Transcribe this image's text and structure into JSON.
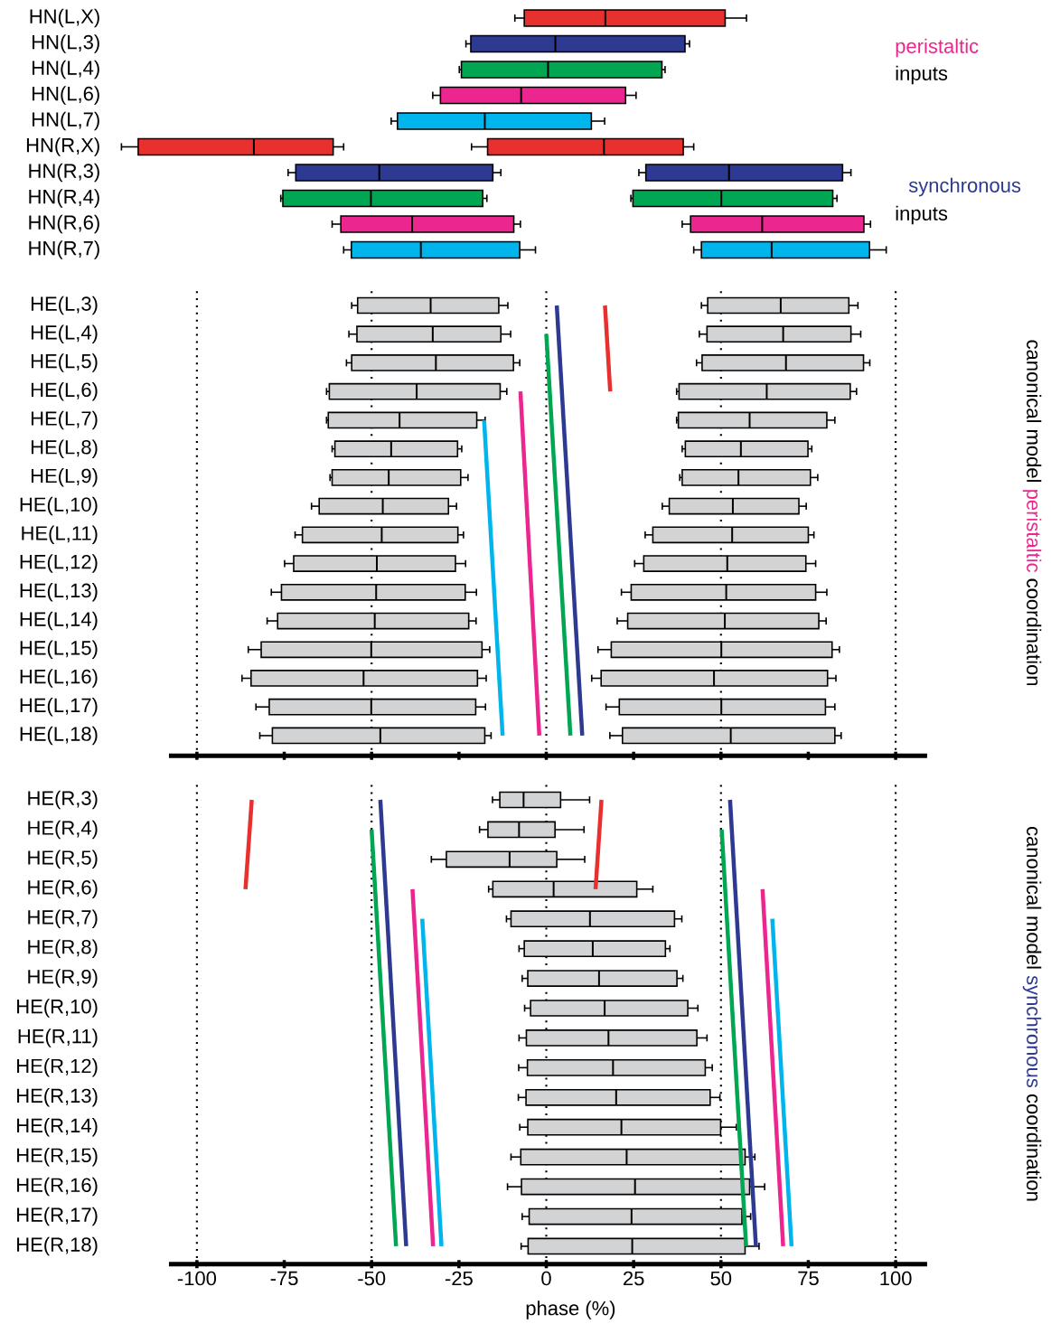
{
  "chart_data": [
    {
      "type": "box",
      "orientation": "horizontal",
      "categories": [
        "HN(L,X)",
        "HN(L,3)",
        "HN(L,4)",
        "HN(L,6)",
        "HN(L,7)",
        "HN(R,X)",
        "HN(R,3)",
        "HN(R,4)",
        "HN(R,6)",
        "HN(R,7)"
      ],
      "xticks": [
        -100,
        -75,
        -50,
        -25,
        0,
        25,
        50,
        75,
        100
      ],
      "tick_labels": "y",
      "annotations": [
        "peristaltic",
        "inputs",
        "synchronous",
        "inputs"
      ],
      "series": [
        {
          "colors": [
            "#e8312f",
            "#2e3a91",
            "#00a651",
            "#ec268f",
            "#00b4ec",
            "#e8312f",
            "#2e3a91",
            "#00a651",
            "#ec268f",
            "#00b4ec"
          ],
          "boxes": [
            {
              "low": -9.0,
              "q1": -6.3,
              "median": 16.9,
              "q3": 51.2,
              "high": 57.3
            },
            {
              "low": -23.0,
              "q1": -21.6,
              "median": 2.6,
              "q3": 39.7,
              "high": 41.0
            },
            {
              "low": -24.9,
              "q1": -24.3,
              "median": 0.5,
              "q3": 33.1,
              "high": 34.0
            },
            {
              "low": -32.5,
              "q1": -30.3,
              "median": -7.2,
              "q3": 22.7,
              "high": 25.7
            },
            {
              "low": -44.4,
              "q1": -42.6,
              "median": -17.6,
              "q3": 12.9,
              "high": 16.7
            },
            {
              "low": -121.6,
              "q1": -116.8,
              "median": -83.7,
              "q3": -61.0,
              "high": -58.0
            },
            {
              "low": -73.9,
              "q1": -71.7,
              "median": -47.8,
              "q3": -15.3,
              "high": -13.0
            },
            {
              "low": -76.0,
              "q1": -75.4,
              "median": -50.2,
              "q3": -18.2,
              "high": -17.0
            },
            {
              "low": -61.3,
              "q1": -58.8,
              "median": -38.4,
              "q3": -9.3,
              "high": -7.4
            },
            {
              "low": -58.0,
              "q1": -55.8,
              "median": -35.9,
              "q3": -7.6,
              "high": -3.1
            }
          ]
        },
        {
          "colors": [
            null,
            null,
            null,
            null,
            null,
            "#e8312f",
            "#2e3a91",
            "#00a651",
            "#ec268f",
            "#00b4ec"
          ],
          "boxes": [
            null,
            null,
            null,
            null,
            null,
            {
              "low": -21.4,
              "q1": -16.8,
              "median": 16.5,
              "q3": 39.2,
              "high": 42.2
            },
            {
              "low": 26.5,
              "q1": 28.5,
              "median": 52.3,
              "q3": 84.8,
              "high": 87.2
            },
            {
              "low": 24.2,
              "q1": 24.8,
              "median": 50.1,
              "q3": 82.0,
              "high": 83.2
            },
            {
              "low": 38.9,
              "q1": 41.3,
              "median": 61.8,
              "q3": 90.9,
              "high": 92.8
            },
            {
              "low": 42.2,
              "q1": 44.4,
              "median": 64.5,
              "q3": 92.5,
              "high": 97.3
            }
          ]
        }
      ]
    },
    {
      "type": "box",
      "orientation": "horizontal",
      "categories": [
        "HE(L,3)",
        "HE(L,4)",
        "HE(L,5)",
        "HE(L,6)",
        "HE(L,7)",
        "HE(L,8)",
        "HE(L,9)",
        "HE(L,10)",
        "HE(L,11)",
        "HE(L,12)",
        "HE(L,13)",
        "HE(L,14)",
        "HE(L,15)",
        "HE(L,16)",
        "HE(L,17)",
        "HE(L,18)"
      ],
      "xlim": [
        -108,
        109
      ],
      "xticks": [
        -100,
        -75,
        -50,
        -25,
        0,
        25,
        50,
        75,
        100
      ],
      "tick_labels": "y",
      "ref_lines": [
        {
          "axis": "x",
          "value": -100,
          "line_style": "dotted"
        },
        {
          "axis": "x",
          "value": -50,
          "line_style": "dotted"
        },
        {
          "axis": "x",
          "value": 0,
          "line_style": "dotted"
        },
        {
          "axis": "x",
          "value": 50,
          "line_style": "dotted"
        },
        {
          "axis": "x",
          "value": 100,
          "line_style": "dotted"
        }
      ],
      "annotations": [
        "canonical model",
        "peristaltic",
        "coordination"
      ],
      "series": [
        {
          "color": "#d1d3d4",
          "boxes": [
            {
              "low": -55.7,
              "q1": -54.0,
              "median": -33.1,
              "q3": -13.6,
              "high": -11.0
            },
            {
              "low": -56.5,
              "q1": -54.2,
              "median": -32.5,
              "q3": -13.0,
              "high": -10.2
            },
            {
              "low": -57.2,
              "q1": -55.7,
              "median": -31.6,
              "q3": -9.4,
              "high": -7.6
            },
            {
              "low": -62.9,
              "q1": -62.1,
              "median": -37.1,
              "q3": -13.2,
              "high": -11.3
            },
            {
              "low": -62.9,
              "q1": -62.4,
              "median": -42.0,
              "q3": -19.9,
              "high": -17.5
            },
            {
              "low": -61.3,
              "q1": -60.5,
              "median": -44.4,
              "q3": -25.4,
              "high": -24.2
            },
            {
              "low": -61.9,
              "q1": -61.3,
              "median": -45.1,
              "q3": -24.5,
              "high": -22.4
            },
            {
              "low": -67.2,
              "q1": -65.0,
              "median": -46.8,
              "q3": -28.0,
              "high": -25.7
            },
            {
              "low": -71.9,
              "q1": -69.8,
              "median": -47.1,
              "q3": -25.3,
              "high": -23.7
            },
            {
              "low": -74.9,
              "q1": -72.3,
              "median": -48.5,
              "q3": -26.0,
              "high": -23.1
            },
            {
              "low": -78.7,
              "q1": -75.8,
              "median": -48.7,
              "q3": -23.2,
              "high": -20.0
            },
            {
              "low": -79.9,
              "q1": -76.9,
              "median": -49.1,
              "q3": -22.2,
              "high": -20.1
            },
            {
              "low": -85.3,
              "q1": -81.6,
              "median": -50.1,
              "q3": -18.4,
              "high": -16.2
            },
            {
              "low": -87.1,
              "q1": -84.5,
              "median": -52.3,
              "q3": -19.7,
              "high": -17.2
            },
            {
              "low": -83.1,
              "q1": -79.3,
              "median": -50.1,
              "q3": -20.2,
              "high": -17.4
            },
            {
              "low": -82.0,
              "q1": -78.4,
              "median": -47.5,
              "q3": -17.6,
              "high": -15.8
            }
          ]
        },
        {
          "color": "#d1d3d4",
          "boxes": [
            {
              "low": 44.4,
              "q1": 46.2,
              "median": 67.1,
              "q3": 86.6,
              "high": 89.2
            },
            {
              "low": 43.8,
              "q1": 46.0,
              "median": 67.8,
              "q3": 87.2,
              "high": 90.0
            },
            {
              "low": 43.0,
              "q1": 44.6,
              "median": 68.6,
              "q3": 90.8,
              "high": 92.6
            },
            {
              "low": 37.3,
              "q1": 38.0,
              "median": 63.1,
              "q3": 87.0,
              "high": 88.8
            },
            {
              "low": 37.3,
              "q1": 37.8,
              "median": 58.2,
              "q3": 80.3,
              "high": 82.6
            },
            {
              "low": 38.9,
              "q1": 39.8,
              "median": 55.7,
              "q3": 74.9,
              "high": 76.0
            },
            {
              "low": 38.2,
              "q1": 38.9,
              "median": 55.0,
              "q3": 75.6,
              "high": 77.7
            },
            {
              "low": 33.2,
              "q1": 35.2,
              "median": 53.4,
              "q3": 72.3,
              "high": 74.4
            },
            {
              "low": 28.3,
              "q1": 30.5,
              "median": 53.2,
              "q3": 75.0,
              "high": 76.6
            },
            {
              "low": 25.3,
              "q1": 27.9,
              "median": 51.8,
              "q3": 74.3,
              "high": 77.1
            },
            {
              "low": 21.5,
              "q1": 24.3,
              "median": 51.5,
              "q3": 77.1,
              "high": 80.3
            },
            {
              "low": 20.3,
              "q1": 23.3,
              "median": 51.1,
              "q3": 78.0,
              "high": 80.1
            },
            {
              "low": 14.8,
              "q1": 18.6,
              "median": 50.1,
              "q3": 81.8,
              "high": 83.9
            },
            {
              "low": 13.0,
              "q1": 15.7,
              "median": 48.0,
              "q3": 80.5,
              "high": 82.9
            },
            {
              "low": 17.1,
              "q1": 20.9,
              "median": 50.1,
              "q3": 79.9,
              "high": 82.6
            },
            {
              "low": 18.2,
              "q1": 21.8,
              "median": 52.8,
              "q3": 82.6,
              "high": 84.4
            }
          ]
        },
        {
          "type": "line",
          "color": "#00b4ec",
          "values": [
            null,
            null,
            null,
            null,
            -17.8,
            null,
            null,
            null,
            null,
            null,
            null,
            null,
            null,
            null,
            null,
            -12.5
          ]
        },
        {
          "type": "line",
          "color": "#ec268f",
          "values": [
            null,
            null,
            null,
            -7.4,
            null,
            null,
            null,
            null,
            null,
            null,
            null,
            null,
            null,
            null,
            null,
            -2.0
          ]
        },
        {
          "type": "line",
          "color": "#00a651",
          "values": [
            null,
            0.0,
            null,
            null,
            null,
            null,
            null,
            null,
            null,
            null,
            null,
            null,
            null,
            null,
            null,
            6.9
          ]
        },
        {
          "type": "line",
          "color": "#2e3a91",
          "values": [
            3.0,
            null,
            null,
            null,
            null,
            null,
            null,
            null,
            null,
            null,
            null,
            null,
            null,
            null,
            null,
            10.3
          ]
        },
        {
          "type": "line",
          "color": "#e8312f",
          "values": [
            16.8,
            null,
            null,
            18.3,
            null,
            null,
            null,
            null,
            null,
            null,
            null,
            null,
            null,
            null,
            null,
            null
          ]
        }
      ]
    },
    {
      "type": "box",
      "orientation": "horizontal",
      "categories": [
        "HE(R,3)",
        "HE(R,4)",
        "HE(R,5)",
        "HE(R,6)",
        "HE(R,7)",
        "HE(R,8)",
        "HE(R,9)",
        "HE(R,10)",
        "HE(R,11)",
        "HE(R,12)",
        "HE(R,13)",
        "HE(R,14)",
        "HE(R,15)",
        "HE(R,16)",
        "HE(R,17)",
        "HE(R,18)"
      ],
      "xlim": [
        -108,
        109
      ],
      "xticks": [
        -100,
        -75,
        -50,
        -25,
        0,
        25,
        50,
        75,
        100
      ],
      "xlabel": "phase (%)",
      "ref_lines": [
        {
          "axis": "x",
          "value": -100,
          "line_style": "dotted"
        },
        {
          "axis": "x",
          "value": -50,
          "line_style": "dotted"
        },
        {
          "axis": "x",
          "value": 0,
          "line_style": "dotted"
        },
        {
          "axis": "x",
          "value": 50,
          "line_style": "dotted"
        },
        {
          "axis": "x",
          "value": 100,
          "line_style": "dotted"
        }
      ],
      "annotations": [
        "canonical model",
        "synchronous",
        "coordination"
      ],
      "series": [
        {
          "color": "#d1d3d4",
          "boxes": [
            {
              "low": -15.4,
              "q1": -13.3,
              "median": -6.5,
              "q3": 4.1,
              "high": 12.4
            },
            {
              "low": -19.1,
              "q1": -16.7,
              "median": -7.8,
              "q3": 2.5,
              "high": 10.8
            },
            {
              "low": -32.9,
              "q1": -28.6,
              "median": -10.5,
              "q3": 3.0,
              "high": 11.0
            },
            {
              "low": -16.5,
              "q1": -15.3,
              "median": 2.1,
              "q3": 25.9,
              "high": 30.5
            },
            {
              "low": -11.4,
              "q1": -10.1,
              "median": 12.5,
              "q3": 36.7,
              "high": 38.8
            },
            {
              "low": -7.8,
              "q1": -6.3,
              "median": 13.3,
              "q3": 34.1,
              "high": 35.4
            },
            {
              "low": -6.9,
              "q1": -5.3,
              "median": 15.1,
              "q3": 37.4,
              "high": 39.1
            },
            {
              "low": -6.2,
              "q1": -4.5,
              "median": 16.7,
              "q3": 40.5,
              "high": 43.4
            },
            {
              "low": -7.8,
              "q1": -5.7,
              "median": 17.8,
              "q3": 43.1,
              "high": 46.0
            },
            {
              "low": -7.9,
              "q1": -5.4,
              "median": 19.1,
              "q3": 45.5,
              "high": 47.5
            },
            {
              "low": -8.0,
              "q1": -5.8,
              "median": 20.0,
              "q3": 46.9,
              "high": 49.7
            },
            {
              "low": -7.6,
              "q1": -5.3,
              "median": 21.5,
              "q3": 49.9,
              "high": 54.4
            },
            {
              "low": -10.1,
              "q1": -7.3,
              "median": 23.0,
              "q3": 56.9,
              "high": 59.7
            },
            {
              "low": -11.1,
              "q1": -7.1,
              "median": 25.4,
              "q3": 58.2,
              "high": 62.5
            },
            {
              "low": -6.9,
              "q1": -4.9,
              "median": 24.4,
              "q3": 56.0,
              "high": 58.5
            },
            {
              "low": -7.2,
              "q1": -5.2,
              "median": 24.6,
              "q3": 56.9,
              "high": 60.9
            }
          ]
        },
        {
          "type": "line",
          "color": "#e8312f",
          "values": [
            -84.3,
            null,
            null,
            -86.1,
            null,
            null,
            null,
            null,
            null,
            null,
            null,
            null,
            null,
            null,
            null,
            null
          ]
        },
        {
          "type": "line",
          "color": "#00a651",
          "values": [
            null,
            -50.0,
            null,
            null,
            null,
            null,
            null,
            null,
            null,
            null,
            null,
            null,
            null,
            null,
            null,
            -43.0
          ]
        },
        {
          "type": "line",
          "color": "#2e3a91",
          "values": [
            -47.5,
            null,
            null,
            null,
            null,
            null,
            null,
            null,
            null,
            null,
            null,
            null,
            null,
            null,
            null,
            -40.1
          ]
        },
        {
          "type": "line",
          "color": "#ec268f",
          "values": [
            null,
            null,
            null,
            -38.3,
            null,
            null,
            null,
            null,
            null,
            null,
            null,
            null,
            null,
            null,
            null,
            -32.4
          ]
        },
        {
          "type": "line",
          "color": "#00b4ec",
          "values": [
            null,
            null,
            null,
            null,
            -35.5,
            null,
            null,
            null,
            null,
            null,
            null,
            null,
            null,
            null,
            null,
            -30.0
          ]
        },
        {
          "type": "line",
          "color": "#e8312f",
          "values": [
            15.8,
            null,
            null,
            14.1,
            null,
            null,
            null,
            null,
            null,
            null,
            null,
            null,
            null,
            null,
            null,
            null
          ]
        },
        {
          "type": "line",
          "color": "#00a651",
          "values": [
            null,
            50.2,
            null,
            null,
            null,
            null,
            null,
            null,
            null,
            null,
            null,
            null,
            null,
            null,
            null,
            57.2
          ]
        },
        {
          "type": "line",
          "color": "#2e3a91",
          "values": [
            52.6,
            null,
            null,
            null,
            null,
            null,
            null,
            null,
            null,
            null,
            null,
            null,
            null,
            null,
            null,
            60.0
          ]
        },
        {
          "type": "line",
          "color": "#ec268f",
          "values": [
            null,
            null,
            null,
            61.9,
            null,
            null,
            null,
            null,
            null,
            null,
            null,
            null,
            null,
            null,
            null,
            67.8
          ]
        },
        {
          "type": "line",
          "color": "#00b4ec",
          "values": [
            null,
            null,
            null,
            null,
            64.7,
            null,
            null,
            null,
            null,
            null,
            null,
            null,
            null,
            null,
            null,
            70.2
          ]
        }
      ]
    }
  ]
}
